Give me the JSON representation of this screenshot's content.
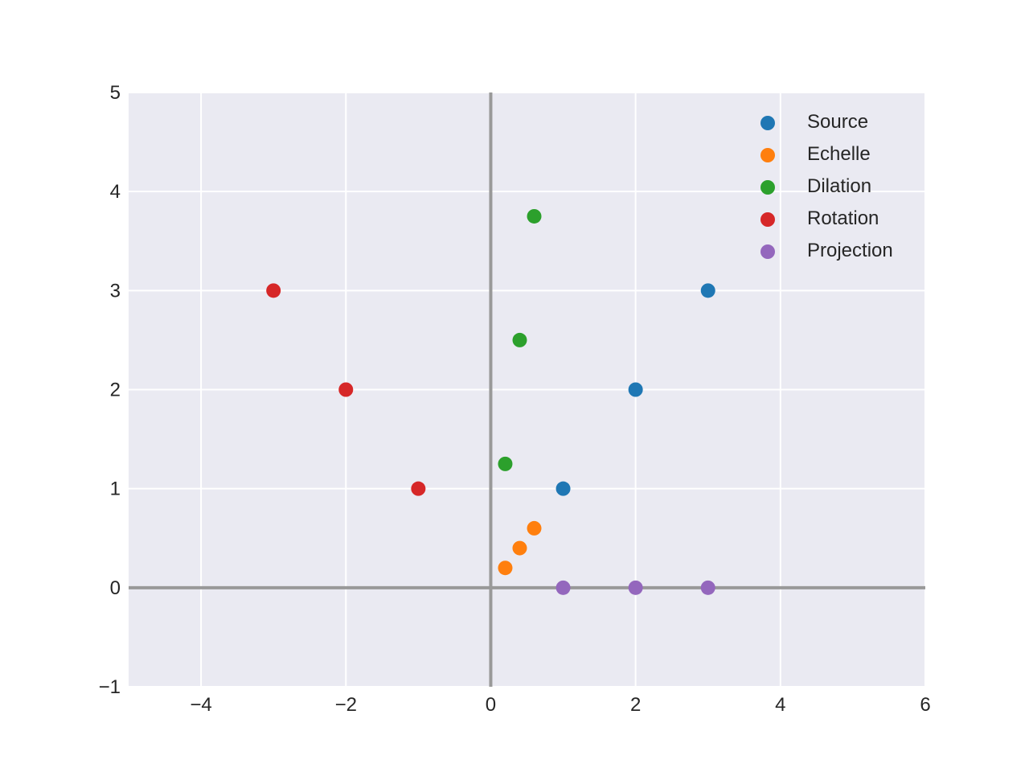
{
  "chart_data": {
    "type": "scatter",
    "title": "",
    "xlabel": "",
    "ylabel": "",
    "xlim": [
      -5,
      6
    ],
    "ylim": [
      -1,
      5
    ],
    "x_ticks": [
      -4,
      -2,
      0,
      2,
      4,
      6
    ],
    "x_tick_labels": [
      "−4",
      "−2",
      "0",
      "2",
      "4",
      "6"
    ],
    "y_ticks": [
      -1,
      0,
      1,
      2,
      3,
      4,
      5
    ],
    "y_tick_labels": [
      "−1",
      "0",
      "1",
      "2",
      "3",
      "4",
      "5"
    ],
    "grid": true,
    "axis_lines_through_origin": true,
    "background_color": "#eaeaf2",
    "grid_color": "#ffffff",
    "origin_axis_color": "#999999",
    "legend_position": "top-right",
    "series": [
      {
        "name": "Source",
        "color": "#1f77b4",
        "points": [
          [
            1,
            1
          ],
          [
            2,
            2
          ],
          [
            3,
            3
          ]
        ]
      },
      {
        "name": "Echelle",
        "color": "#ff7f0e",
        "points": [
          [
            0.2,
            0.2
          ],
          [
            0.4,
            0.4
          ],
          [
            0.6,
            0.6
          ]
        ]
      },
      {
        "name": "Dilation",
        "color": "#2ca02c",
        "points": [
          [
            0.2,
            1.25
          ],
          [
            0.4,
            2.5
          ],
          [
            0.6,
            3.75
          ]
        ]
      },
      {
        "name": "Rotation",
        "color": "#d62728",
        "points": [
          [
            -1,
            1
          ],
          [
            -2,
            2
          ],
          [
            -3,
            3
          ]
        ]
      },
      {
        "name": "Projection",
        "color": "#9467bd",
        "points": [
          [
            1,
            0
          ],
          [
            2,
            0
          ],
          [
            3,
            0
          ]
        ]
      }
    ]
  }
}
